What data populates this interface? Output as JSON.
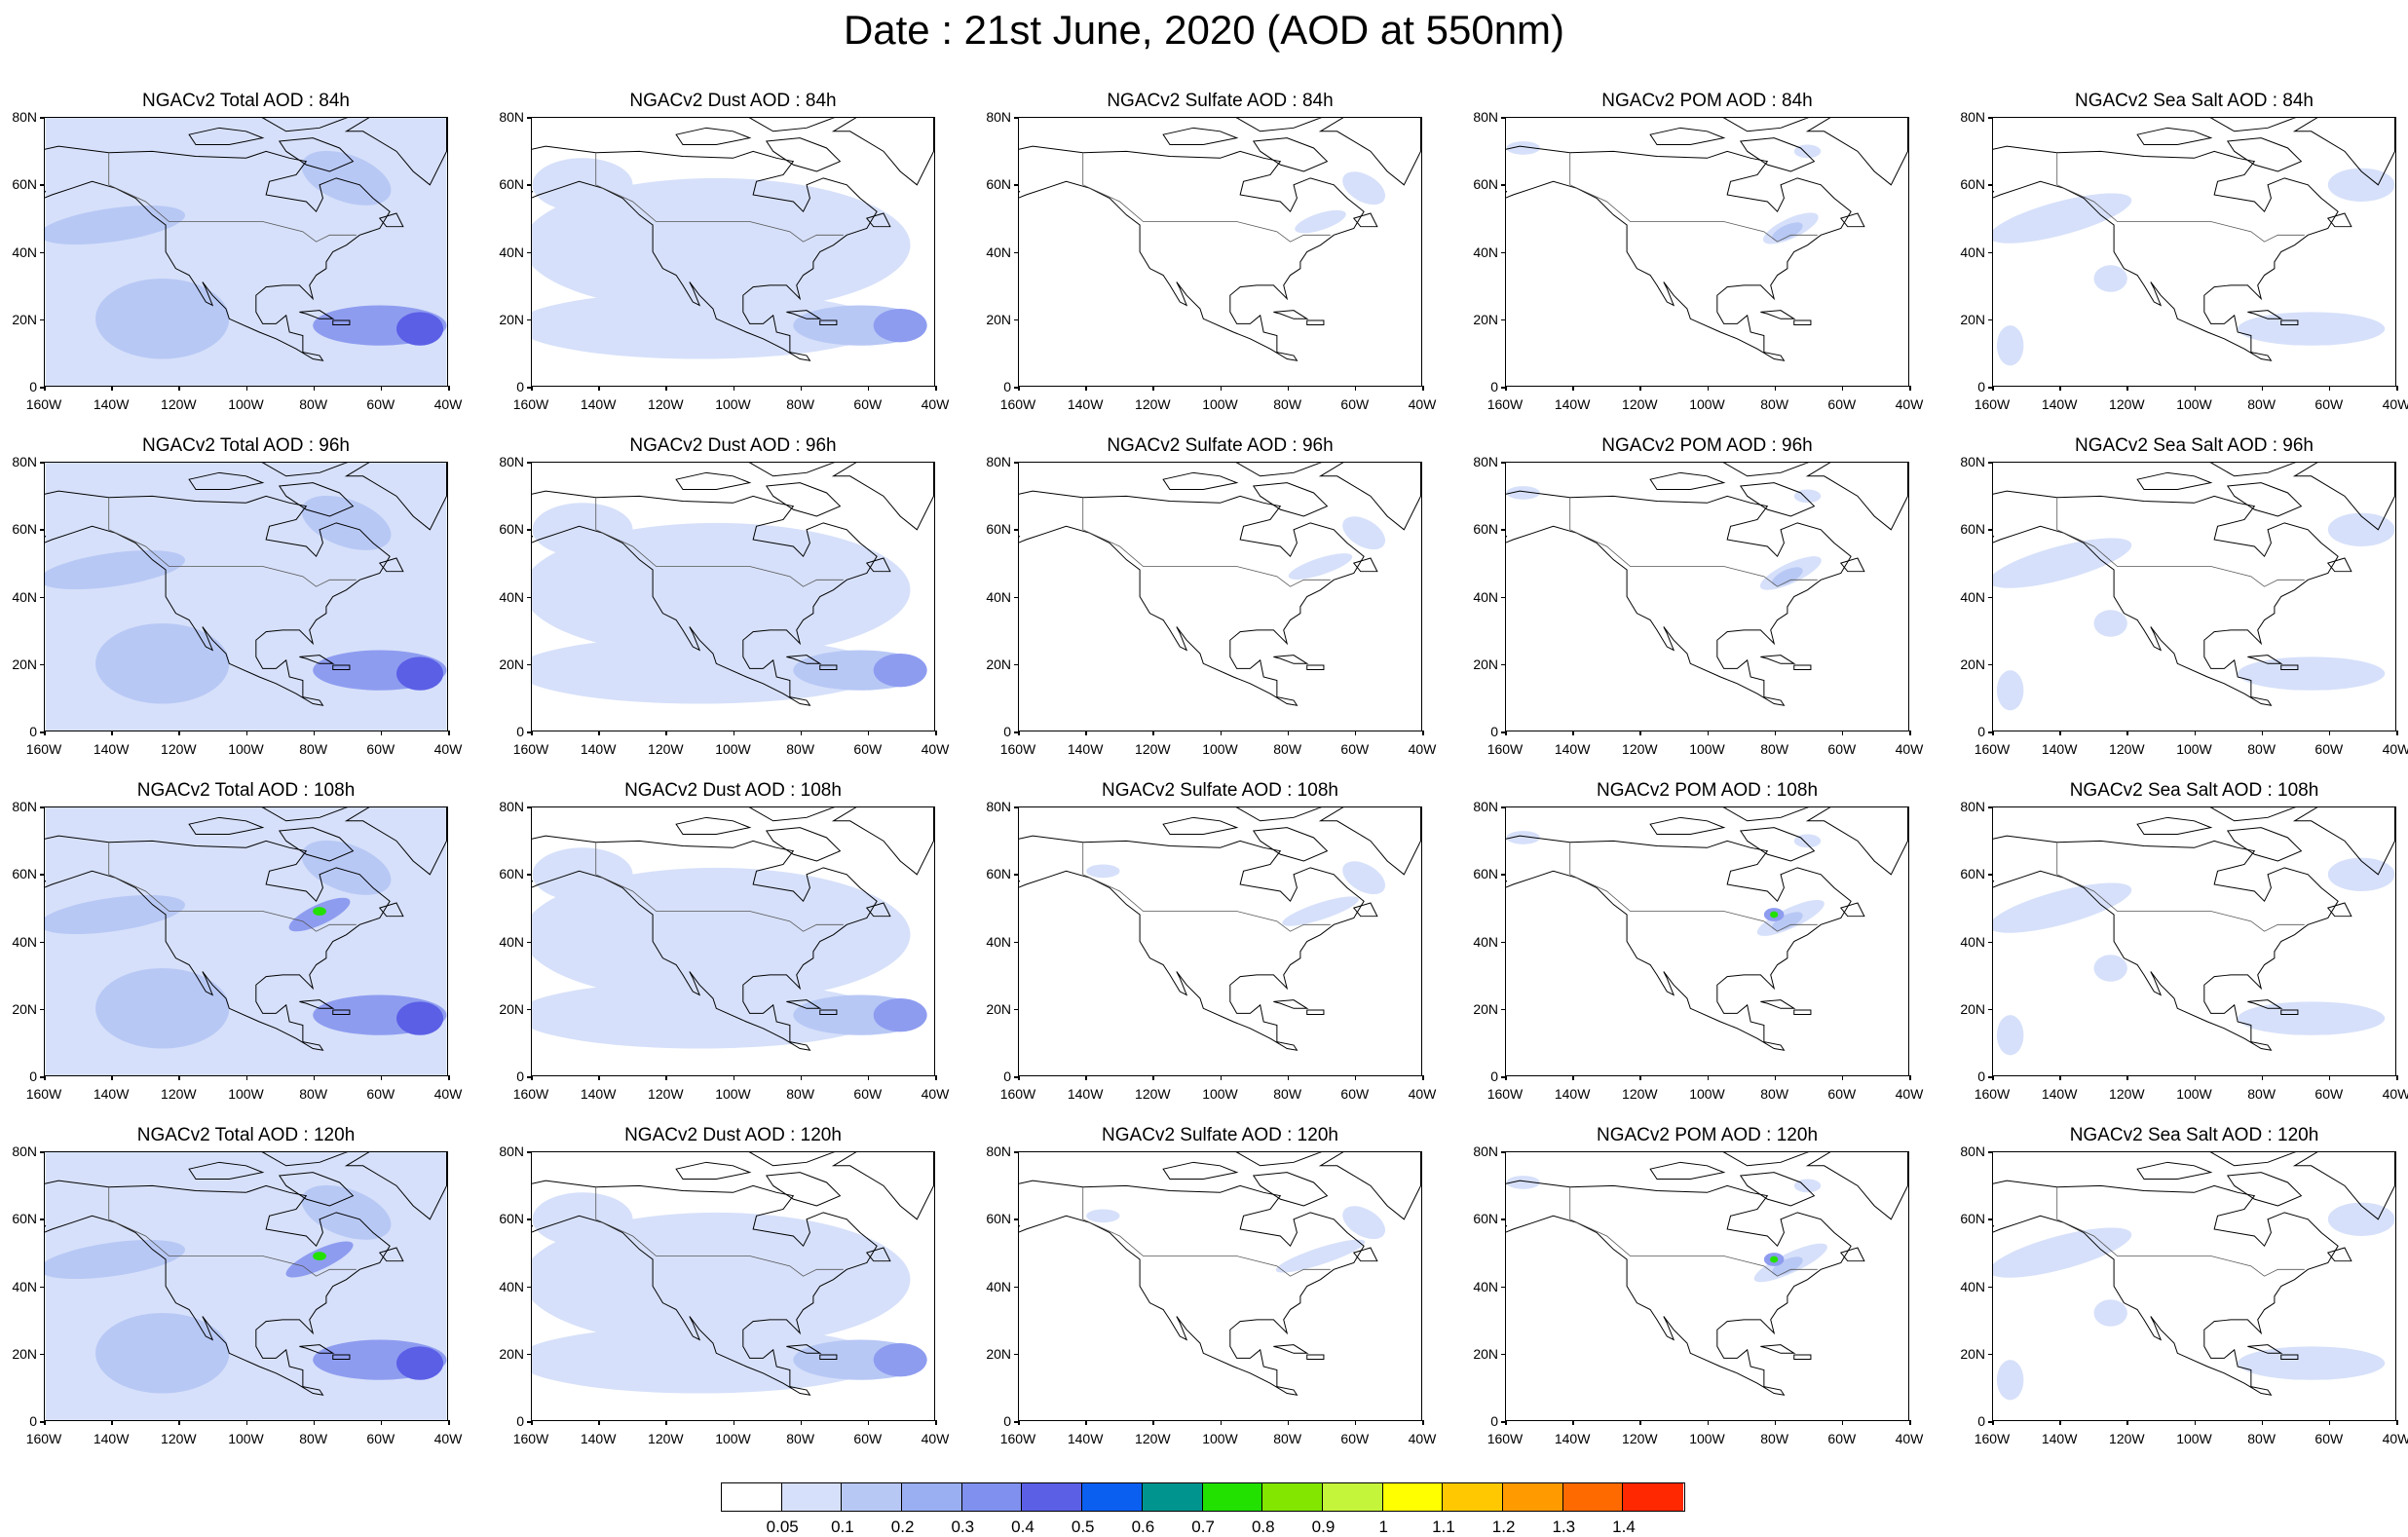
{
  "title": "Date : 21st June, 2020 (AOD at 550nm)",
  "row_hours": [
    "84h",
    "96h",
    "108h",
    "120h"
  ],
  "panels": [
    [
      "NGACv2 Total AOD : 84h",
      "NGACv2 Dust AOD : 84h",
      "NGACv2 Sulfate AOD : 84h",
      "NGACv2 POM AOD : 84h",
      "NGACv2 Sea Salt AOD : 84h"
    ],
    [
      "NGACv2 Total AOD : 96h",
      "NGACv2 Dust AOD : 96h",
      "NGACv2 Sulfate AOD : 96h",
      "NGACv2 POM AOD : 96h",
      "NGACv2 Sea Salt AOD : 96h"
    ],
    [
      "NGACv2 Total AOD : 108h",
      "NGACv2 Dust AOD : 108h",
      "NGACv2 Sulfate AOD : 108h",
      "NGACv2 POM AOD : 108h",
      "NGACv2 Sea Salt AOD : 108h"
    ],
    [
      "NGACv2 Total AOD : 120h",
      "NGACv2 Dust AOD : 120h",
      "NGACv2 Sulfate AOD : 120h",
      "NGACv2 POM AOD : 120h",
      "NGACv2 Sea Salt  AOD : 120h"
    ]
  ],
  "axis": {
    "lat_labels": [
      "80N",
      "60N",
      "40N",
      "20N",
      "0"
    ],
    "lon_labels": [
      "160W",
      "140W",
      "120W",
      "100W",
      "80W",
      "60W",
      "40W"
    ],
    "lat_range": [
      0,
      80
    ],
    "lon_range": [
      -160,
      -40
    ]
  },
  "colorbar": {
    "labels": [
      "0.05",
      "0.1",
      "0.2",
      "0.3",
      "0.4",
      "0.5",
      "0.6",
      "0.7",
      "0.8",
      "0.9",
      "1",
      "1.1",
      "1.2",
      "1.3",
      "1.4"
    ],
    "colors": [
      "#ffffff",
      "#d6e0fa",
      "#b8c8f5",
      "#9aaff1",
      "#7f90ee",
      "#5b5fe6",
      "#0a5ff0",
      "#00948f",
      "#22e000",
      "#82e600",
      "#c5f53a",
      "#ffff00",
      "#ffc800",
      "#ff9a00",
      "#ff6a00",
      "#ff2800"
    ]
  },
  "species_colors": {
    "light": "#d6e0fa",
    "medium": "#b8c8f5",
    "strong": "#8e9cf0",
    "peak": "#5b5fe6",
    "hot": "#22e000"
  }
}
